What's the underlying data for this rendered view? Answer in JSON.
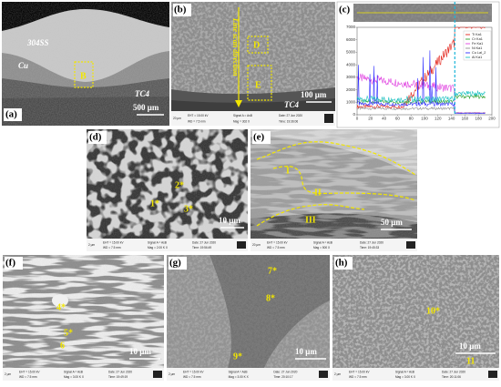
{
  "panels": [
    {
      "label": "(a)",
      "annotations": [
        "304SS",
        "Cu",
        "B",
        "TC4"
      ],
      "scale_bar": "500 μm"
    },
    {
      "label": "(b)",
      "annotations": [
        "Line scan direction",
        "D",
        "E",
        "TC4"
      ],
      "scale_bar": "100 μm",
      "info": [
        "20 μm",
        "EHT = 15.00 kV",
        "WD = 7.5 mm",
        "Signal A = AsB",
        "Mag = 302 X",
        "Date: 27 Jun 2020",
        "Time: 19:36:06"
      ]
    },
    {
      "label": "(c)",
      "chart": {
        "yticks": [
          0,
          1000,
          2000,
          3000,
          4000,
          5000,
          6000,
          7000
        ],
        "xticks": [
          0,
          20,
          40,
          60,
          80,
          100,
          120,
          140,
          160,
          180,
          200
        ],
        "legend": [
          {
            "name": "Ti Ka1",
            "color": "#e3241b"
          },
          {
            "name": "Cr Ka1",
            "color": "#2ca02c"
          },
          {
            "name": "Fe Ka1",
            "color": "#e040e0"
          },
          {
            "name": "Ni Ka1",
            "color": "#909090"
          },
          {
            "name": "Cu LaI_2",
            "color": "#2b2bff"
          },
          {
            "name": "Al Ka1",
            "color": "#18c0c0"
          }
        ]
      }
    },
    {
      "label": "(d)",
      "annotations": [
        "1*",
        "2*",
        "3*"
      ],
      "scale_bar": "10 μm",
      "info": [
        "2 μm",
        "EHT = 15.00 kV",
        "WD = 7.5 mm",
        "Signal A = AsB",
        "Mag = 2.00 K X",
        "Date: 27 Jun 2020",
        "Time: 19:56:49"
      ]
    },
    {
      "label": "(e)",
      "annotations": [
        "I",
        "II",
        "III"
      ],
      "scale_bar": "50 μm",
      "info": [
        "20 μm",
        "EHT = 15.00 kV",
        "WD = 7.5 mm",
        "Signal A = AsB",
        "Mag = 500 X",
        "Date: 27 Jun 2020",
        "Time: 19:45:33"
      ]
    },
    {
      "label": "(f)",
      "annotations": [
        "4*",
        "5*",
        "6"
      ],
      "scale_bar": "10 μm",
      "info": [
        "2 μm",
        "EHT = 15.00 kV",
        "WD = 7.5 mm",
        "Signal A = AsB",
        "Mag = 3.00 K X",
        "Date: 27 Jun 2020",
        "Time: 19:49:19"
      ]
    },
    {
      "label": "(g)",
      "annotations": [
        "7*",
        "8*",
        "9*"
      ],
      "scale_bar": "10 μm",
      "info": [
        "2 μm",
        "EHT = 15.00 kV",
        "WD = 7.5 mm",
        "Signal A = AsB",
        "Mag = 3.00 K X",
        "Date: 27 Jun 2020",
        "Time: 20:10:17"
      ]
    },
    {
      "label": "(h)",
      "annotations": [
        "10*",
        "11"
      ],
      "scale_bar": "10 μm",
      "info": [
        "2 μm",
        "EHT = 15.00 kV",
        "WD = 7.5 mm",
        "Signal A = AsB",
        "Mag = 3.00 K X",
        "Date: 27 Jun 2020",
        "Time: 20:11:06"
      ]
    }
  ]
}
